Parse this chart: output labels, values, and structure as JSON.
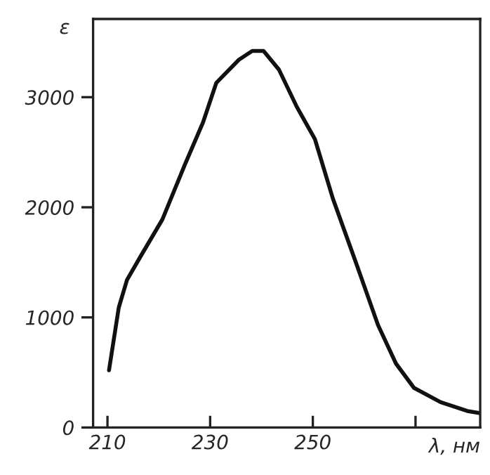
{
  "chart_data": {
    "type": "line",
    "ylabel": "ε",
    "xlabel": "λ, нм",
    "color": "#111111",
    "x": [
      210.3,
      212.2,
      213.8,
      216.4,
      220.7,
      225.1,
      228.6,
      231.2,
      235.6,
      238.2,
      240.4,
      243.4,
      246.9,
      250.4,
      253.9,
      258.3,
      262.7,
      266.2,
      269.7,
      274.9,
      280.1,
      282.6
    ],
    "values": [
      520,
      1090,
      1340,
      1550,
      1890,
      2390,
      2770,
      3130,
      3340,
      3420,
      3420,
      3250,
      2910,
      2620,
      2080,
      1510,
      930,
      580,
      360,
      230,
      150,
      130
    ],
    "xlim": [
      207.2,
      282.6
    ],
    "ylim": [
      0,
      3710
    ],
    "xticks": [
      210,
      230,
      250,
      {
        "value": 270,
        "label": null
      }
    ],
    "yticks": [
      0,
      1000,
      2000,
      3000
    ],
    "grid": false,
    "marker": "none",
    "line_style": "solid"
  }
}
